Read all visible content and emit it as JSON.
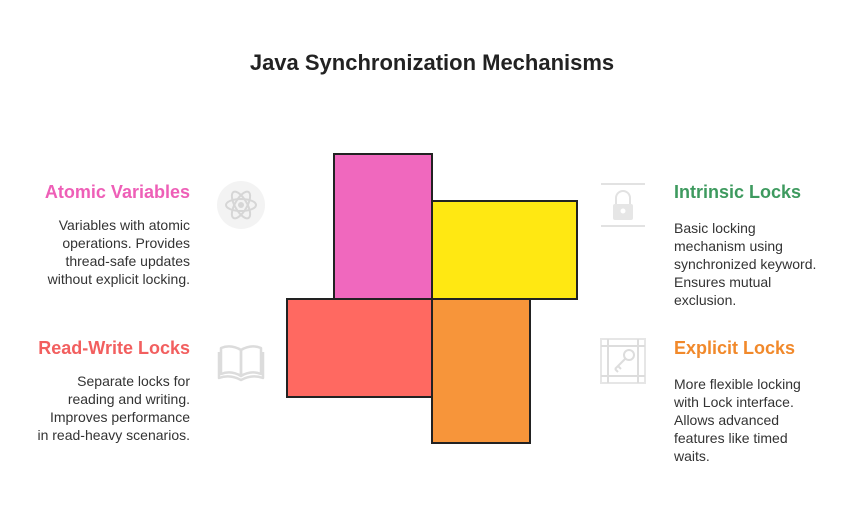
{
  "title": "Java Synchronization Mechanisms",
  "colors": {
    "atomic": "#F068BE",
    "intrinsic": "#FFE812",
    "readwrite": "#FF6961",
    "explicit": "#F7953A",
    "atomic_text": "#EE5FB7",
    "intrinsic_text": "#3E9A5F",
    "readwrite_text": "#F25F5F",
    "explicit_text": "#F1892B"
  },
  "items": {
    "atomic": {
      "heading": "Atomic Variables",
      "lines": [
        "Variables with atomic",
        "operations. Provides",
        "thread-safe updates",
        "without explicit locking."
      ],
      "icon": "atom-icon"
    },
    "intrinsic": {
      "heading": "Intrinsic Locks",
      "lines": [
        "Basic locking",
        "mechanism using",
        "synchronized keyword.",
        "Ensures mutual",
        "exclusion."
      ],
      "icon": "padlock-icon"
    },
    "readwrite": {
      "heading": "Read-Write Locks",
      "lines": [
        "Separate locks for",
        "reading and writing.",
        "Improves performance",
        "in read-heavy scenarios."
      ],
      "icon": "open-book-icon"
    },
    "explicit": {
      "heading": "Explicit Locks",
      "lines": [
        "More flexible locking",
        "with Lock interface.",
        "Allows advanced",
        "features like timed",
        "waits."
      ],
      "icon": "key-icon"
    }
  }
}
